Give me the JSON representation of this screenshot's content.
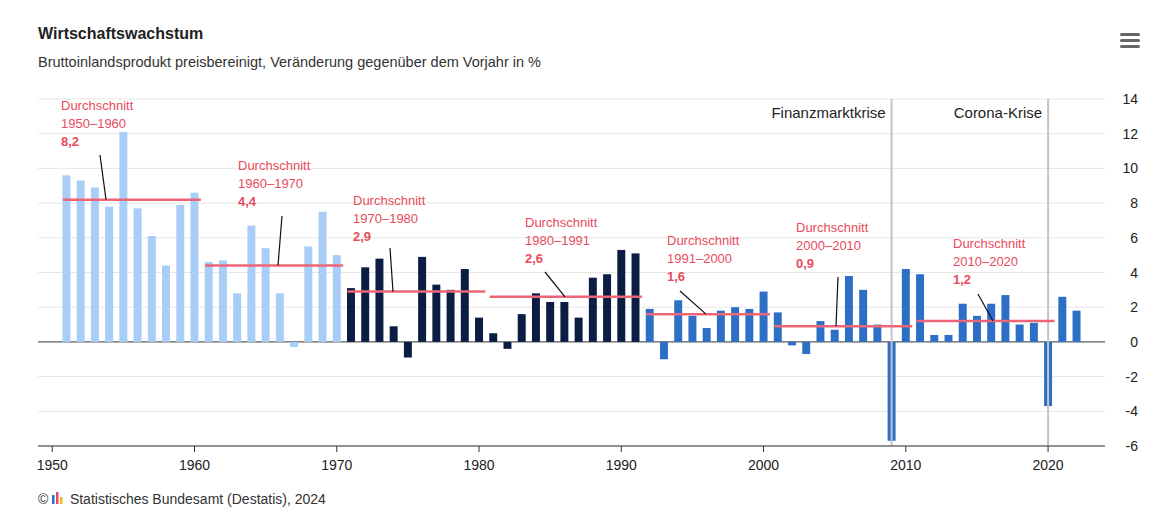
{
  "chart_data": {
    "type": "bar",
    "title": "Wirtschaftswachstum",
    "subtitle": "Bruttoinlandsprodukt preisbereinigt, Veränderung gegenüber dem Vorjahr in %",
    "source": "© Statistisches Bundesamt (Destatis), 2024",
    "x": [
      1951,
      1952,
      1953,
      1954,
      1955,
      1956,
      1957,
      1958,
      1959,
      1960,
      1961,
      1962,
      1963,
      1964,
      1965,
      1966,
      1967,
      1968,
      1969,
      1970,
      1971,
      1972,
      1973,
      1974,
      1975,
      1976,
      1977,
      1978,
      1979,
      1980,
      1981,
      1982,
      1983,
      1984,
      1985,
      1986,
      1987,
      1988,
      1989,
      1990,
      1991,
      1992,
      1993,
      1994,
      1995,
      1996,
      1997,
      1998,
      1999,
      2000,
      2001,
      2002,
      2003,
      2004,
      2005,
      2006,
      2007,
      2008,
      2009,
      2010,
      2011,
      2012,
      2013,
      2014,
      2015,
      2016,
      2017,
      2018,
      2019,
      2020,
      2021,
      2022
    ],
    "values": [
      9.6,
      9.3,
      8.9,
      7.8,
      12.1,
      7.7,
      6.1,
      4.4,
      7.9,
      8.6,
      4.6,
      4.7,
      2.8,
      6.7,
      5.4,
      2.8,
      -0.3,
      5.5,
      7.5,
      5.0,
      3.1,
      4.3,
      4.8,
      0.9,
      -0.9,
      4.9,
      3.3,
      3.0,
      4.2,
      1.4,
      0.5,
      -0.4,
      1.6,
      2.8,
      2.3,
      2.3,
      1.4,
      3.7,
      3.9,
      5.3,
      5.1,
      1.9,
      -1.0,
      2.4,
      1.5,
      0.8,
      1.8,
      2.0,
      1.9,
      2.9,
      1.7,
      -0.2,
      -0.7,
      1.2,
      0.7,
      3.8,
      3.0,
      1.0,
      -5.7,
      4.2,
      3.9,
      0.4,
      0.4,
      2.2,
      1.5,
      2.2,
      2.7,
      1.0,
      1.1,
      -3.7,
      2.6,
      1.8
    ],
    "colors": [
      "#a8cdf6",
      "#a8cdf6",
      "#a8cdf6",
      "#a8cdf6",
      "#a8cdf6",
      "#a8cdf6",
      "#a8cdf6",
      "#a8cdf6",
      "#a8cdf6",
      "#a8cdf6",
      "#a8cdf6",
      "#a8cdf6",
      "#a8cdf6",
      "#a8cdf6",
      "#a8cdf6",
      "#a8cdf6",
      "#a8cdf6",
      "#a8cdf6",
      "#a8cdf6",
      "#a8cdf6",
      "#0b1d43",
      "#0b1d43",
      "#0b1d43",
      "#0b1d43",
      "#0b1d43",
      "#0b1d43",
      "#0b1d43",
      "#0b1d43",
      "#0b1d43",
      "#0b1d43",
      "#0b1d43",
      "#0b1d43",
      "#0b1d43",
      "#0b1d43",
      "#0b1d43",
      "#0b1d43",
      "#0b1d43",
      "#0b1d43",
      "#0b1d43",
      "#0b1d43",
      "#0b1d43",
      "#2d6fc6",
      "#2d6fc6",
      "#2d6fc6",
      "#2d6fc6",
      "#2d6fc6",
      "#2d6fc6",
      "#2d6fc6",
      "#2d6fc6",
      "#2d6fc6",
      "#2d6fc6",
      "#2d6fc6",
      "#2d6fc6",
      "#2d6fc6",
      "#2d6fc6",
      "#2d6fc6",
      "#2d6fc6",
      "#2d6fc6",
      "#2d6fc6",
      "#2d6fc6",
      "#2d6fc6",
      "#2d6fc6",
      "#2d6fc6",
      "#2d6fc6",
      "#2d6fc6",
      "#2d6fc6",
      "#2d6fc6",
      "#2d6fc6",
      "#2d6fc6",
      "#2d6fc6",
      "#2d6fc6",
      "#2d6fc6"
    ],
    "xlim": [
      1949,
      2024
    ],
    "xticks": [
      1950,
      1960,
      1970,
      1980,
      1990,
      2000,
      2010,
      2020
    ],
    "ylim": [
      -6,
      14
    ],
    "yticks": [
      -6,
      -4,
      -2,
      0,
      2,
      4,
      6,
      8,
      10,
      12,
      14
    ],
    "grid": true,
    "averages": [
      {
        "label": [
          "Durchschnitt",
          "1950–1960"
        ],
        "from": 1950,
        "to": 1960,
        "value": 8.2,
        "value_label": "8,2"
      },
      {
        "label": [
          "Durchschnitt",
          "1960–1970"
        ],
        "from": 1960,
        "to": 1970,
        "value": 4.4,
        "value_label": "4,4"
      },
      {
        "label": [
          "Durchschnitt",
          "1970–1980"
        ],
        "from": 1970,
        "to": 1980,
        "value": 2.9,
        "value_label": "2,9"
      },
      {
        "label": [
          "Durchschnitt",
          "1980–1991"
        ],
        "from": 1980,
        "to": 1991,
        "value": 2.6,
        "value_label": "2,6"
      },
      {
        "label": [
          "Durchschnitt",
          "1991–2000"
        ],
        "from": 1991,
        "to": 2000,
        "value": 1.6,
        "value_label": "1,6"
      },
      {
        "label": [
          "Durchschnitt",
          "2000–2010"
        ],
        "from": 2000,
        "to": 2010,
        "value": 0.9,
        "value_label": "0,9"
      },
      {
        "label": [
          "Durchschnitt",
          "2010–2020"
        ],
        "from": 2010,
        "to": 2020,
        "value": 1.2,
        "value_label": "1,2"
      }
    ],
    "markers": [
      {
        "label": "Finanzmarktkrise",
        "x": 2009
      },
      {
        "label": "Corona-Krise",
        "x": 2020
      }
    ]
  }
}
